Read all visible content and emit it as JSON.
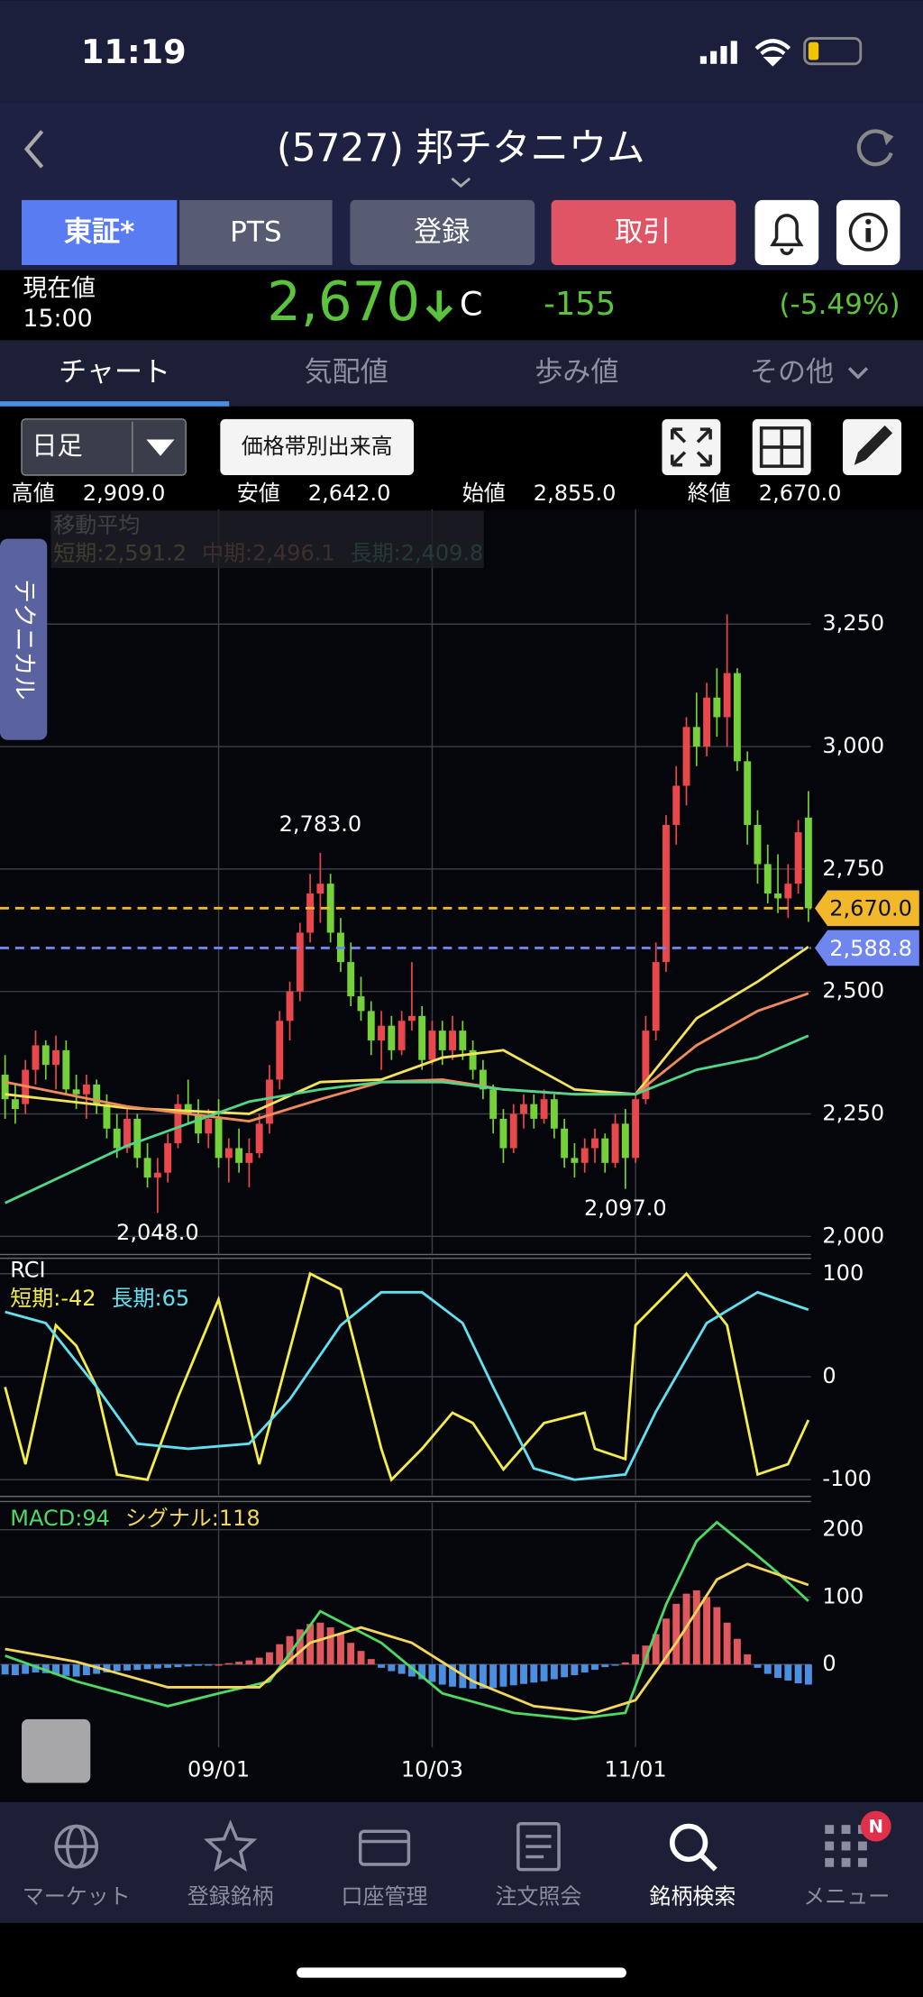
{
  "status_bar": {
    "time": "11:19"
  },
  "header": {
    "title": "(5727) 邦チタニウム"
  },
  "market_buttons": [
    "東証*",
    "PTS"
  ],
  "action_buttons": [
    "登録",
    "取引"
  ],
  "quote": {
    "label": "現在値",
    "time": "15:00",
    "price": "2,670",
    "flag": "C",
    "change": "-155",
    "change_percent": "(-5.49%)"
  },
  "tabs": [
    "チャート",
    "気配値",
    "歩み値",
    "その他"
  ],
  "toolbar": {
    "period": "日足",
    "volume_profile": "価格帯別出来高"
  },
  "summary": [
    {
      "label": "高値",
      "value": "2,909.0"
    },
    {
      "label": "安値",
      "value": "2,642.0"
    },
    {
      "label": "始値",
      "value": "2,855.0"
    },
    {
      "label": "終値",
      "value": "2,670.0"
    }
  ],
  "side_tab": "テクニカル",
  "chart_data": [
    {
      "type": "candlestick",
      "legend_title": "移動平均",
      "xlim": [
        -0.5,
        79.5
      ],
      "ylim": [
        1963,
        3484
      ],
      "yticks": [
        {
          "value": 2000,
          "label": "2,000"
        },
        {
          "value": 2250,
          "label": "2,250"
        },
        {
          "value": 2500,
          "label": "2,500"
        },
        {
          "value": 2750,
          "label": "2,750"
        },
        {
          "value": 3000,
          "label": "3,000"
        },
        {
          "value": 3250,
          "label": "3,250"
        }
      ],
      "grid": true,
      "up_color": "#e8474c",
      "down_color": "#74d13a",
      "open": [
        2330,
        2280,
        2270,
        2340,
        2390,
        2350,
        2380,
        2300,
        2290,
        2310,
        2270,
        2220,
        2180,
        2240,
        2160,
        2120,
        2130,
        2190,
        2270,
        2250,
        2210,
        2240,
        2160,
        2180,
        2150,
        2170,
        2230,
        2320,
        2440,
        2500,
        2620,
        2700,
        2720,
        2620,
        2560,
        2490,
        2460,
        2400,
        2430,
        2380,
        2440,
        2450,
        2360,
        2420,
        2380,
        2420,
        2380,
        2340,
        2300,
        2240,
        2180,
        2250,
        2270,
        2240,
        2280,
        2220,
        2160,
        2150,
        2180,
        2200,
        2150,
        2230,
        2160,
        2280,
        2420,
        2560,
        2840,
        2920,
        3040,
        3000,
        3100,
        3060,
        3150,
        2970,
        2840,
        2760,
        2700,
        2690,
        2720,
        2855
      ],
      "high": [
        2370,
        2310,
        2360,
        2420,
        2400,
        2410,
        2400,
        2330,
        2330,
        2320,
        2290,
        2250,
        2260,
        2250,
        2190,
        2160,
        2210,
        2290,
        2320,
        2280,
        2260,
        2280,
        2200,
        2220,
        2200,
        2250,
        2350,
        2460,
        2520,
        2640,
        2740,
        2783,
        2740,
        2650,
        2600,
        2530,
        2480,
        2460,
        2450,
        2460,
        2560,
        2470,
        2440,
        2440,
        2450,
        2440,
        2400,
        2360,
        2310,
        2260,
        2270,
        2290,
        2290,
        2300,
        2290,
        2240,
        2190,
        2200,
        2220,
        2210,
        2250,
        2260,
        2290,
        2450,
        2600,
        2860,
        2960,
        3060,
        3110,
        3130,
        3160,
        3270,
        3160,
        2990,
        2870,
        2800,
        2780,
        2760,
        2850,
        2909
      ],
      "low": [
        2240,
        2230,
        2250,
        2310,
        2320,
        2300,
        2290,
        2260,
        2240,
        2250,
        2200,
        2160,
        2170,
        2140,
        2100,
        2048,
        2110,
        2180,
        2230,
        2190,
        2180,
        2140,
        2110,
        2130,
        2100,
        2160,
        2210,
        2300,
        2400,
        2480,
        2600,
        2640,
        2600,
        2540,
        2470,
        2440,
        2370,
        2340,
        2360,
        2370,
        2420,
        2340,
        2350,
        2350,
        2360,
        2360,
        2320,
        2280,
        2210,
        2150,
        2170,
        2220,
        2220,
        2230,
        2200,
        2140,
        2120,
        2130,
        2150,
        2130,
        2140,
        2097,
        2150,
        2270,
        2400,
        2540,
        2800,
        2880,
        2960,
        2980,
        3020,
        3000,
        2950,
        2800,
        2720,
        2680,
        2660,
        2650,
        2700,
        2642
      ],
      "close": [
        2280,
        2260,
        2340,
        2390,
        2350,
        2380,
        2300,
        2290,
        2310,
        2270,
        2220,
        2180,
        2240,
        2160,
        2120,
        2130,
        2190,
        2270,
        2250,
        2210,
        2240,
        2160,
        2180,
        2150,
        2170,
        2230,
        2320,
        2440,
        2500,
        2620,
        2700,
        2720,
        2620,
        2560,
        2490,
        2460,
        2400,
        2430,
        2380,
        2440,
        2450,
        2360,
        2420,
        2380,
        2420,
        2380,
        2340,
        2300,
        2240,
        2180,
        2250,
        2270,
        2240,
        2280,
        2220,
        2160,
        2150,
        2180,
        2200,
        2150,
        2230,
        2160,
        2280,
        2420,
        2560,
        2840,
        2920,
        3040,
        3000,
        3100,
        3060,
        3150,
        2970,
        2840,
        2760,
        2700,
        2690,
        2720,
        2825,
        2670
      ],
      "series": [
        {
          "name": "短期:2,591.2",
          "color": "#f3e35a",
          "x": [
            0,
            12,
            24,
            31,
            37,
            43,
            49,
            56,
            62,
            68,
            74,
            79
          ],
          "values": [
            2290,
            2262,
            2250,
            2315,
            2320,
            2365,
            2380,
            2300,
            2290,
            2445,
            2520,
            2591.2
          ]
        },
        {
          "name": "中期:2,496.1",
          "color": "#f08a5a",
          "x": [
            0,
            12,
            24,
            31,
            37,
            43,
            49,
            56,
            62,
            68,
            74,
            79
          ],
          "values": [
            2315,
            2265,
            2235,
            2280,
            2315,
            2320,
            2300,
            2290,
            2290,
            2390,
            2460,
            2496.1
          ]
        },
        {
          "name": "長期:2,409.8",
          "color": "#4fd68a",
          "x": [
            0,
            12,
            24,
            31,
            37,
            43,
            49,
            56,
            62,
            68,
            74,
            79
          ],
          "values": [
            2068,
            2185,
            2275,
            2300,
            2315,
            2315,
            2300,
            2290,
            2290,
            2340,
            2365,
            2409.8
          ]
        }
      ],
      "annotations": [
        {
          "x": 31,
          "value": 2783,
          "label": "2,783.0"
        },
        {
          "x": 15,
          "value": 2048,
          "label": "2,048.0"
        },
        {
          "x": 61,
          "value": 2097,
          "label": "2,097.0"
        }
      ],
      "price_lines": [
        {
          "value": 2670,
          "label": "2,670.0",
          "color": "#f2b82c"
        },
        {
          "value": 2588.8,
          "label": "2,588.8",
          "color": "#6f86f0"
        }
      ]
    },
    {
      "type": "line",
      "title": "RCI",
      "xlim": [
        -0.5,
        79.5
      ],
      "ylim": [
        -115,
        115
      ],
      "yticks": [
        -100,
        0,
        100
      ],
      "grid": true,
      "series": [
        {
          "name": "短期:-42",
          "color": "#f3ec4a",
          "x": [
            0,
            2,
            5,
            7,
            9,
            11,
            14,
            17,
            21,
            25,
            30,
            33,
            37,
            38,
            41,
            44,
            46,
            49,
            53,
            57,
            58,
            61,
            62,
            67,
            71,
            74,
            77,
            79
          ],
          "values": [
            -10,
            -85,
            50,
            30,
            -10,
            -95,
            -100,
            -20,
            75,
            -85,
            100,
            85,
            -70,
            -100,
            -70,
            -35,
            -45,
            -90,
            -45,
            -35,
            -70,
            -80,
            50,
            100,
            50,
            -95,
            -85,
            -42
          ]
        },
        {
          "name": "長期:65",
          "color": "#62e0f0",
          "x": [
            0,
            4,
            9,
            13,
            18,
            24,
            28,
            33,
            37,
            41,
            45,
            48,
            52,
            56,
            61,
            64,
            69,
            74,
            79
          ],
          "values": [
            63,
            52,
            -10,
            -65,
            -70,
            -65,
            -22,
            50,
            82,
            82,
            52,
            -10,
            -89,
            -100,
            -95,
            -34,
            52,
            82,
            65
          ]
        }
      ]
    },
    {
      "type": "line",
      "xlim": [
        -0.5,
        79.5
      ],
      "ylim": [
        -123,
        240
      ],
      "yticks": [
        0,
        100,
        200
      ],
      "grid": true,
      "xticks": [
        {
          "value": 21,
          "label": "09/01"
        },
        {
          "value": 42,
          "label": "10/03"
        },
        {
          "value": 62,
          "label": "11/01"
        }
      ],
      "series": [
        {
          "name": "MACD:94",
          "color": "#4cd964",
          "x": [
            0,
            7,
            16,
            21,
            26,
            31,
            37,
            43,
            50,
            56,
            61,
            65,
            68,
            70,
            73,
            76,
            79
          ],
          "values": [
            13,
            -25,
            -62,
            -43,
            -25,
            79,
            32,
            -43,
            -72,
            -81,
            -72,
            89,
            183,
            211,
            174,
            136,
            94
          ]
        },
        {
          "name": "シグナル:118",
          "color": "#f3d65a",
          "x": [
            0,
            7,
            16,
            25,
            30,
            35,
            40,
            46,
            52,
            58,
            62,
            66,
            70,
            73,
            79
          ],
          "values": [
            23,
            4,
            -34,
            -34,
            32,
            55,
            32,
            -25,
            -62,
            -72,
            -53,
            32,
            126,
            149,
            118
          ]
        }
      ],
      "histogram": {
        "positive_color": "#e0585d",
        "negative_color": "#4a8fe0",
        "values": [
          -15,
          -16,
          -14,
          -12,
          -13,
          -15,
          -17,
          -18,
          -16,
          -14,
          -12,
          -10,
          -9,
          -8,
          -7,
          -6,
          -5,
          -4,
          -3,
          -2,
          -1,
          0,
          2,
          4,
          6,
          10,
          18,
          30,
          42,
          52,
          60,
          62,
          55,
          45,
          32,
          20,
          8,
          -5,
          -10,
          -14,
          -18,
          -22,
          -26,
          -30,
          -33,
          -35,
          -36,
          -36,
          -35,
          -33,
          -31,
          -29,
          -27,
          -25,
          -22,
          -19,
          -16,
          -12,
          -8,
          -4,
          -2,
          3,
          15,
          28,
          45,
          68,
          90,
          105,
          110,
          100,
          85,
          62,
          38,
          15,
          -5,
          -14,
          -20,
          -24,
          -28,
          -30
        ]
      }
    }
  ],
  "nav": [
    "マーケット",
    "登録銘柄",
    "口座管理",
    "注文照会",
    "銘柄検索",
    "メニュー"
  ],
  "nav_badge": "N"
}
